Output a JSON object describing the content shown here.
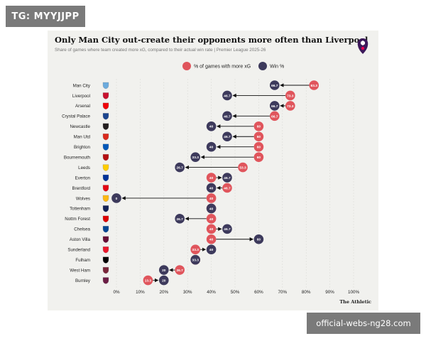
{
  "watermark_top": "TG: MYYJJPP",
  "watermark_bottom": "official-webs-ng28.com",
  "chart_data": {
    "type": "dot-arrow",
    "title": "Only Man City out-create their opponents more often than Liverpool",
    "subtitle": "Share of games where team created more xG, compared to their actual win rate | Premier League 2025-26",
    "source": "The Athletic",
    "legend": [
      {
        "name": "% of games with more xG",
        "color": "#e0555c"
      },
      {
        "name": "Win %",
        "color": "#3d3a5c"
      }
    ],
    "xlim": [
      0,
      100
    ],
    "x_ticks": [
      "0%",
      "10%",
      "20%",
      "30%",
      "40%",
      "50%",
      "60%",
      "70%",
      "80%",
      "90%",
      "100%"
    ],
    "teams": [
      {
        "name": "Man City",
        "xg": 83.3,
        "win": 66.7,
        "xg_label": "83.3",
        "win_label": "66.7"
      },
      {
        "name": "Liverpool",
        "xg": 73.3,
        "win": 46.7,
        "xg_label": "73.3",
        "win_label": "46.7"
      },
      {
        "name": "Arsenal",
        "xg": 73.3,
        "win": 66.7,
        "xg_label": "73.3",
        "win_label": "66.7"
      },
      {
        "name": "Crystal Palace",
        "xg": 66.7,
        "win": 46.7,
        "xg_label": "66.7",
        "win_label": "46.7"
      },
      {
        "name": "Newcastle",
        "xg": 60,
        "win": 40,
        "xg_label": "60",
        "win_label": "40"
      },
      {
        "name": "Man Utd",
        "xg": 60,
        "win": 46.7,
        "xg_label": "60",
        "win_label": "46.7"
      },
      {
        "name": "Brighton",
        "xg": 60,
        "win": 40,
        "xg_label": "60",
        "win_label": "40"
      },
      {
        "name": "Bournemouth",
        "xg": 60,
        "win": 33.3,
        "xg_label": "60",
        "win_label": "33.3"
      },
      {
        "name": "Leeds",
        "xg": 53.3,
        "win": 26.7,
        "xg_label": "53.3",
        "win_label": "26.7"
      },
      {
        "name": "Everton",
        "xg": 40,
        "win": 46.7,
        "xg_label": "40",
        "win_label": "46.7"
      },
      {
        "name": "Brentford",
        "xg": 46.7,
        "win": 40,
        "xg_label": "46.7",
        "win_label": "40"
      },
      {
        "name": "Wolves",
        "xg": 40,
        "win": 0,
        "xg_label": "40",
        "win_label": "0"
      },
      {
        "name": "Tottenham",
        "xg": 40,
        "win": 40,
        "xg_label": "40",
        "win_label": "40"
      },
      {
        "name": "Nottm Forest",
        "xg": 40,
        "win": 26.7,
        "xg_label": "40",
        "win_label": "26.7"
      },
      {
        "name": "Chelsea",
        "xg": 40,
        "win": 46.7,
        "xg_label": "40",
        "win_label": "46.7"
      },
      {
        "name": "Aston Villa",
        "xg": 40,
        "win": 60,
        "xg_label": "40",
        "win_label": "60"
      },
      {
        "name": "Sunderland",
        "xg": 33.3,
        "win": 40,
        "xg_label": "33.3",
        "win_label": "40"
      },
      {
        "name": "Fulham",
        "xg": 33.3,
        "win": 33.3,
        "xg_label": "33.3",
        "win_label": "33.3"
      },
      {
        "name": "West Ham",
        "xg": 26.7,
        "win": 20,
        "xg_label": "26.7",
        "win_label": "20"
      },
      {
        "name": "Burnley",
        "xg": 13.3,
        "win": 20,
        "xg_label": "13.3",
        "win_label": "20"
      }
    ],
    "crest_colors": [
      "#6cabdd",
      "#c8102e",
      "#ef0107",
      "#1b458f",
      "#241f20",
      "#da291c",
      "#0057b8",
      "#b50e12",
      "#ffcd00",
      "#003399",
      "#e30613",
      "#fdb913",
      "#132257",
      "#dd0000",
      "#034694",
      "#670e36",
      "#eb172b",
      "#000000",
      "#7a263a",
      "#6c1d45"
    ],
    "grid": true,
    "legend_position": "top-center"
  }
}
